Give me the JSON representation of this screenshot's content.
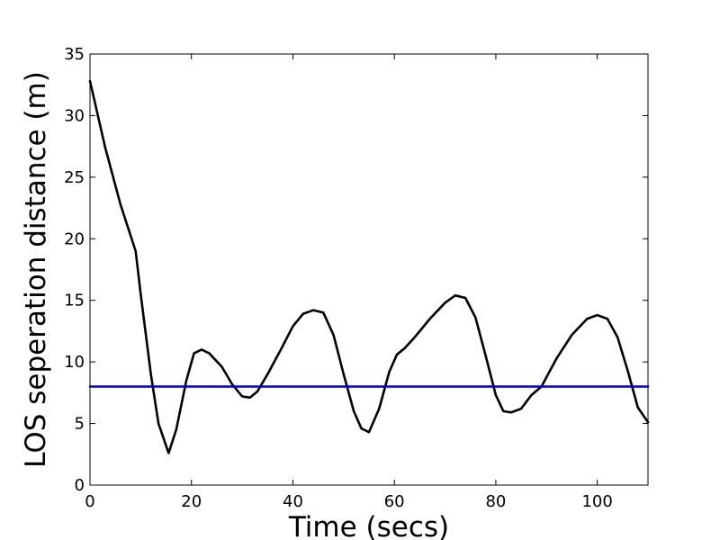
{
  "chart_data": {
    "type": "line",
    "title": "",
    "xlabel": "Time (secs)",
    "ylabel": "LOS seperation distance (m)",
    "xlim": [
      0,
      110
    ],
    "ylim": [
      0,
      35
    ],
    "xticks": [
      0,
      20,
      40,
      60,
      80,
      100
    ],
    "yticks": [
      0,
      5,
      10,
      15,
      20,
      25,
      30,
      35
    ],
    "xtick_labels": [
      "0",
      "20",
      "40",
      "60",
      "80",
      "100"
    ],
    "ytick_labels": [
      "0",
      "5",
      "10",
      "15",
      "20",
      "25",
      "30",
      "35"
    ],
    "grid": false,
    "legend": "none",
    "series": [
      {
        "color": "#000000",
        "x": [
          0,
          3,
          6,
          9,
          10,
          12,
          13.5,
          15.5,
          17,
          19,
          20.5,
          22,
          23.5,
          26,
          28,
          30,
          31.5,
          33,
          35,
          38,
          40,
          42,
          44,
          46,
          48,
          50,
          52,
          53.5,
          55,
          57,
          59,
          60.5,
          62,
          64,
          67,
          70,
          72,
          74,
          76,
          78,
          80,
          81.5,
          83,
          85,
          87,
          89,
          92,
          95,
          98,
          100,
          102,
          104,
          106,
          108,
          110
        ],
        "values": [
          32.8,
          27.4,
          22.8,
          19.0,
          15.5,
          9.0,
          5.0,
          2.6,
          4.5,
          8.5,
          10.7,
          11.0,
          10.7,
          9.6,
          8.2,
          7.2,
          7.1,
          7.6,
          9.0,
          11.3,
          12.9,
          13.9,
          14.2,
          14.0,
          12.2,
          9.0,
          6.0,
          4.6,
          4.3,
          6.2,
          9.2,
          10.6,
          11.1,
          12.0,
          13.5,
          14.8,
          15.4,
          15.2,
          13.6,
          10.5,
          7.3,
          6.0,
          5.9,
          6.2,
          7.3,
          8.0,
          10.3,
          12.2,
          13.5,
          13.8,
          13.5,
          12.0,
          9.3,
          6.3,
          5.1
        ]
      },
      {
        "color": "#0000cc",
        "x": [
          0,
          110
        ],
        "values": [
          8,
          8
        ]
      }
    ]
  }
}
